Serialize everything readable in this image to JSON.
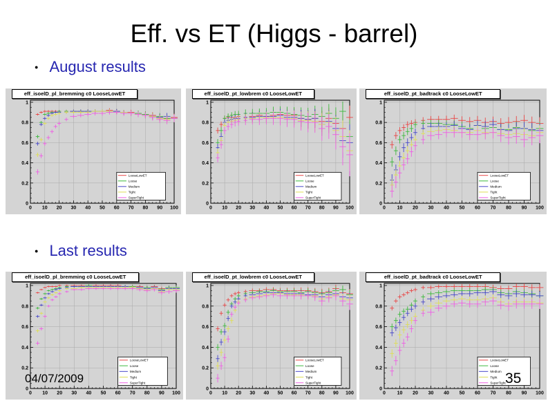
{
  "slide": {
    "title": "Eff. vs ET (Higgs - barrel)",
    "bullets": [
      "August results",
      "Last results"
    ],
    "date": "04/07/2009",
    "page_number": "35",
    "bullet_color": "#2626b0",
    "title_color": "#000000"
  },
  "chart_data": {
    "type": "scatter",
    "shared": {
      "x": [
        5,
        7.5,
        10,
        12.5,
        15,
        17.5,
        20,
        25,
        30,
        35,
        40,
        45,
        50,
        55,
        60,
        65,
        70,
        75,
        80,
        85,
        90,
        95,
        100
      ],
      "xlim": [
        0,
        100
      ],
      "ylim": [
        0,
        1.02
      ],
      "xticks": [
        0,
        10,
        20,
        30,
        40,
        50,
        60,
        70,
        80,
        90,
        100
      ],
      "yticks": [
        0,
        0.2,
        0.4,
        0.6,
        0.8,
        1
      ],
      "grid": true,
      "legend_position": "bottom-right",
      "legend": [
        {
          "label": "LooseLowET",
          "color": "#e84545"
        },
        {
          "label": "Loose",
          "color": "#3cb83c"
        },
        {
          "label": "Medium",
          "color": "#4747c8"
        },
        {
          "label": "Tight",
          "color": "#dede55"
        },
        {
          "label": "SuperTight",
          "color": "#ee5fe4"
        }
      ],
      "canvas_color": "#d4d4d4",
      "grid_color": "#a9a9a9"
    },
    "plots": [
      {
        "title": "eff_isoelD_pl_bremming c0 LooseLowET",
        "section": "August results",
        "err": [
          0.012,
          0.04
        ],
        "series": {
          "LooseLowET": [
            0.88,
            0.9,
            0.91,
            0.91,
            0.91,
            0.91,
            0.91,
            0.91,
            0.91,
            0.91,
            0.91,
            0.91,
            0.91,
            0.92,
            0.91,
            0.9,
            0.9,
            0.89,
            0.88,
            0.87,
            0.85,
            0.84,
            0.85
          ],
          "Loose": [
            0.66,
            0.8,
            0.88,
            0.89,
            0.9,
            0.9,
            0.91,
            0.91,
            0.91,
            0.91,
            0.91,
            0.91,
            0.91,
            0.91,
            0.91,
            0.9,
            0.89,
            0.89,
            0.88,
            0.86,
            0.86,
            0.84,
            0.84
          ],
          "Medium": [
            0.59,
            0.78,
            0.84,
            0.87,
            0.89,
            0.9,
            0.9,
            0.9,
            0.91,
            0.91,
            0.91,
            0.91,
            0.91,
            0.91,
            0.91,
            0.9,
            0.89,
            0.88,
            0.87,
            0.86,
            0.85,
            0.86,
            0.84
          ],
          "Tight": [
            0.48,
            0.63,
            0.79,
            0.84,
            0.87,
            0.88,
            0.89,
            0.9,
            0.9,
            0.9,
            0.9,
            0.91,
            0.91,
            0.91,
            0.9,
            0.9,
            0.89,
            0.88,
            0.87,
            0.86,
            0.84,
            0.83,
            0.84
          ],
          "SuperTight": [
            0.31,
            0.47,
            0.59,
            0.65,
            0.71,
            0.76,
            0.79,
            0.83,
            0.86,
            0.87,
            0.88,
            0.89,
            0.89,
            0.9,
            0.9,
            0.89,
            0.89,
            0.88,
            0.87,
            0.85,
            0.83,
            0.82,
            0.84
          ]
        }
      },
      {
        "title": "eff_isoelD_pt_lowbrem c0 LooseLowET",
        "section": "August results",
        "err": [
          0.02,
          0.13
        ],
        "series": {
          "LooseLowET": [
            0.72,
            0.78,
            0.84,
            0.85,
            0.85,
            0.85,
            0.86,
            0.85,
            0.86,
            0.87,
            0.86,
            0.87,
            0.88,
            0.87,
            0.87,
            0.84,
            0.83,
            0.84,
            0.81,
            0.84,
            0.79,
            0.74,
            0.85
          ],
          "Loose": [
            0.6,
            0.72,
            0.84,
            0.86,
            0.87,
            0.88,
            0.88,
            0.89,
            0.89,
            0.89,
            0.89,
            0.9,
            0.9,
            0.89,
            0.88,
            0.87,
            0.86,
            0.88,
            0.86,
            0.89,
            0.84,
            0.91,
            0.66
          ],
          "Medium": [
            0.55,
            0.66,
            0.8,
            0.82,
            0.83,
            0.84,
            0.84,
            0.85,
            0.85,
            0.86,
            0.86,
            0.86,
            0.87,
            0.85,
            0.85,
            0.84,
            0.83,
            0.84,
            0.78,
            0.81,
            0.74,
            0.62,
            0.6
          ],
          "Tight": [
            0.5,
            0.62,
            0.77,
            0.8,
            0.81,
            0.82,
            0.83,
            0.84,
            0.84,
            0.85,
            0.85,
            0.85,
            0.85,
            0.84,
            0.84,
            0.82,
            0.82,
            0.81,
            0.78,
            0.8,
            0.72,
            0.66,
            0.52
          ],
          "SuperTight": [
            0.45,
            0.58,
            0.72,
            0.76,
            0.78,
            0.8,
            0.81,
            0.82,
            0.83,
            0.83,
            0.84,
            0.84,
            0.84,
            0.83,
            0.83,
            0.81,
            0.8,
            0.8,
            0.74,
            0.76,
            0.68,
            0.56,
            0.48
          ]
        }
      },
      {
        "title": "eff_isoelD_pt_badtrack c0 LooseLowET",
        "section": "August results",
        "err": [
          0.025,
          0.06
        ],
        "series": {
          "LooseLowET": [
            0.58,
            0.67,
            0.72,
            0.75,
            0.78,
            0.79,
            0.8,
            0.82,
            0.83,
            0.83,
            0.83,
            0.84,
            0.82,
            0.81,
            0.82,
            0.8,
            0.81,
            0.79,
            0.8,
            0.81,
            0.82,
            0.8,
            0.79
          ],
          "Loose": [
            0.41,
            0.52,
            0.63,
            0.67,
            0.71,
            0.74,
            0.78,
            0.79,
            0.79,
            0.79,
            0.78,
            0.78,
            0.76,
            0.74,
            0.77,
            0.74,
            0.75,
            0.73,
            0.73,
            0.75,
            0.74,
            0.72,
            0.74
          ],
          "Medium": [
            0.23,
            0.33,
            0.46,
            0.55,
            0.6,
            0.65,
            0.7,
            0.74,
            0.76,
            0.76,
            0.76,
            0.77,
            0.74,
            0.73,
            0.77,
            0.76,
            0.78,
            0.73,
            0.72,
            0.74,
            0.74,
            0.73,
            0.72
          ],
          "Tight": [
            0.18,
            0.28,
            0.37,
            0.45,
            0.52,
            0.58,
            0.63,
            0.69,
            0.71,
            0.72,
            0.73,
            0.72,
            0.7,
            0.7,
            0.72,
            0.7,
            0.7,
            0.69,
            0.68,
            0.69,
            0.68,
            0.67,
            0.7
          ],
          "SuperTight": [
            0.12,
            0.21,
            0.3,
            0.38,
            0.44,
            0.51,
            0.57,
            0.63,
            0.67,
            0.68,
            0.7,
            0.7,
            0.7,
            0.68,
            0.68,
            0.69,
            0.7,
            0.67,
            0.65,
            0.66,
            0.63,
            0.65,
            0.67
          ]
        }
      },
      {
        "title": "eff_isoelD_pl_bremming c0 LooseLowET",
        "section": "Last results",
        "err": [
          0.01,
          0.03
        ],
        "series": {
          "LooseLowET": [
            0.93,
            0.96,
            0.98,
            0.99,
            0.99,
            0.99,
            1.0,
            1.0,
            1.0,
            1.0,
            1.0,
            1.0,
            1.0,
            1.0,
            1.0,
            0.99,
            0.99,
            0.99,
            0.98,
            0.99,
            0.97,
            0.98,
            0.98
          ],
          "Loose": [
            0.78,
            0.87,
            0.92,
            0.95,
            0.96,
            0.97,
            0.98,
            0.99,
            0.99,
            0.99,
            1.0,
            0.99,
            0.99,
            0.99,
            0.99,
            0.99,
            0.99,
            0.98,
            0.98,
            0.98,
            0.96,
            0.98,
            0.98
          ],
          "Medium": [
            0.7,
            0.81,
            0.88,
            0.92,
            0.94,
            0.96,
            0.97,
            0.98,
            0.99,
            0.99,
            0.99,
            0.99,
            0.99,
            0.99,
            0.99,
            0.99,
            0.98,
            0.98,
            0.97,
            0.98,
            0.95,
            0.97,
            0.97
          ],
          "Tight": [
            0.56,
            0.73,
            0.84,
            0.88,
            0.91,
            0.93,
            0.95,
            0.97,
            0.97,
            0.98,
            0.98,
            0.98,
            0.98,
            0.98,
            0.98,
            0.98,
            0.98,
            0.97,
            0.96,
            0.97,
            0.94,
            0.96,
            0.96
          ],
          "SuperTight": [
            0.44,
            0.58,
            0.7,
            0.8,
            0.86,
            0.89,
            0.92,
            0.94,
            0.96,
            0.96,
            0.97,
            0.97,
            0.97,
            0.97,
            0.97,
            0.97,
            0.97,
            0.96,
            0.95,
            0.96,
            0.93,
            0.94,
            0.95
          ]
        }
      },
      {
        "title": "eff_isoelD_pt_lowbrem c0 LooseLowET",
        "section": "Last results",
        "err": [
          0.015,
          0.06
        ],
        "series": {
          "LooseLowET": [
            0.58,
            0.73,
            0.81,
            0.86,
            0.9,
            0.92,
            0.93,
            0.94,
            0.95,
            0.95,
            0.96,
            0.96,
            0.95,
            0.95,
            0.95,
            0.95,
            0.95,
            0.94,
            0.93,
            0.94,
            0.97,
            0.93,
            0.92
          ],
          "Loose": [
            0.4,
            0.55,
            0.61,
            0.74,
            0.82,
            0.87,
            0.9,
            0.92,
            0.93,
            0.94,
            0.94,
            0.95,
            0.94,
            0.94,
            0.94,
            0.93,
            0.94,
            0.93,
            0.92,
            0.93,
            0.95,
            0.96,
            0.91
          ],
          "Medium": [
            0.29,
            0.45,
            0.55,
            0.68,
            0.8,
            0.84,
            0.87,
            0.9,
            0.91,
            0.92,
            0.93,
            0.93,
            0.93,
            0.92,
            0.92,
            0.92,
            0.91,
            0.91,
            0.89,
            0.91,
            0.92,
            0.89,
            0.88
          ],
          "Tight": [
            0.22,
            0.35,
            0.47,
            0.58,
            0.66,
            0.76,
            0.84,
            0.87,
            0.89,
            0.9,
            0.91,
            0.92,
            0.92,
            0.91,
            0.91,
            0.91,
            0.9,
            0.9,
            0.87,
            0.89,
            0.91,
            0.87,
            0.86
          ],
          "SuperTight": [
            0.1,
            0.22,
            0.3,
            0.48,
            0.72,
            0.79,
            0.83,
            0.86,
            0.88,
            0.89,
            0.9,
            0.91,
            0.9,
            0.9,
            0.9,
            0.9,
            0.9,
            0.89,
            0.85,
            0.88,
            0.9,
            0.85,
            0.82
          ]
        }
      },
      {
        "title": "eff_isoelD_pt_badtrack c0 LooseLowET",
        "section": "Last results",
        "err": [
          0.02,
          0.05
        ],
        "series": {
          "LooseLowET": [
            0.78,
            0.85,
            0.89,
            0.91,
            0.93,
            0.95,
            0.96,
            0.98,
            0.98,
            0.99,
            0.99,
            0.99,
            0.99,
            0.99,
            0.99,
            0.99,
            0.98,
            0.97,
            0.97,
            0.99,
            0.99,
            0.98,
            0.98
          ],
          "Loose": [
            0.6,
            0.66,
            0.72,
            0.75,
            0.77,
            0.81,
            0.85,
            0.89,
            0.92,
            0.93,
            0.94,
            0.95,
            0.95,
            0.95,
            0.95,
            0.96,
            0.96,
            0.93,
            0.92,
            0.94,
            0.93,
            0.92,
            0.9
          ],
          "Medium": [
            0.54,
            0.59,
            0.64,
            0.69,
            0.73,
            0.77,
            0.8,
            0.84,
            0.87,
            0.89,
            0.9,
            0.91,
            0.92,
            0.92,
            0.93,
            0.93,
            0.94,
            0.91,
            0.9,
            0.92,
            0.91,
            0.91,
            0.9
          ],
          "Tight": [
            0.34,
            0.44,
            0.52,
            0.57,
            0.62,
            0.66,
            0.7,
            0.76,
            0.8,
            0.83,
            0.85,
            0.86,
            0.87,
            0.86,
            0.86,
            0.87,
            0.88,
            0.84,
            0.82,
            0.84,
            0.84,
            0.84,
            0.83
          ],
          "SuperTight": [
            0.17,
            0.27,
            0.37,
            0.44,
            0.5,
            0.58,
            0.66,
            0.73,
            0.74,
            0.78,
            0.8,
            0.82,
            0.83,
            0.82,
            0.82,
            0.84,
            0.85,
            0.81,
            0.8,
            0.82,
            0.82,
            0.82,
            0.82
          ]
        }
      }
    ]
  }
}
